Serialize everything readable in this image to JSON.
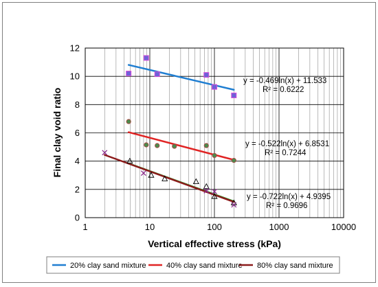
{
  "chart_data": {
    "type": "scatter",
    "xlabel": "Vertical effective stress (kPa)",
    "ylabel": "Final clay void ratio",
    "x_scale": "log",
    "xlim": [
      1,
      10000
    ],
    "ylim": [
      0,
      12
    ],
    "x_ticks": [
      "1",
      "10",
      "100",
      "1000",
      "10000"
    ],
    "y_ticks": [
      "0",
      "2",
      "4",
      "6",
      "8",
      "10",
      "12"
    ],
    "grid": true,
    "legend_position": "bottom",
    "series": [
      {
        "name": "20% clay sand mixture",
        "marker": "square",
        "marker_color": "#6f61d8",
        "line_color": "#1f7ed1",
        "points": [
          [
            4.7,
            10.2
          ],
          [
            8.8,
            11.3
          ],
          [
            13,
            10.15
          ],
          [
            75,
            10.1
          ],
          [
            100,
            9.25
          ],
          [
            200,
            8.65
          ]
        ],
        "trend": {
          "intercept": 11.533,
          "slope": -0.469,
          "x_range": [
            4.7,
            200
          ]
        },
        "equation": "y = -0.469ln(x) + 11.533",
        "r2": "R² = 0.6222"
      },
      {
        "name": "40% clay sand mixture",
        "marker": "circle",
        "marker_color": "#4d8a4d",
        "line_color": "#e02424",
        "points": [
          [
            4.7,
            6.8
          ],
          [
            8.8,
            5.15
          ],
          [
            13,
            5.1
          ],
          [
            24,
            5.05
          ],
          [
            75,
            5.1
          ],
          [
            100,
            4.4
          ],
          [
            200,
            4.05
          ]
        ],
        "trend": {
          "intercept": 6.8531,
          "slope": -0.522,
          "x_range": [
            4.7,
            200
          ]
        },
        "equation": "y = -0.522ln(x) + 6.8531",
        "r2": "R² = 0.7244"
      },
      {
        "name": "80% clay sand mixture",
        "marker": "x",
        "marker_color": "#8b2a8b",
        "line_color": "#8b1a1a",
        "points": [
          [
            2,
            4.6
          ],
          [
            8,
            3.15
          ],
          [
            75,
            1.9
          ],
          [
            100,
            1.85
          ],
          [
            200,
            0.9
          ]
        ],
        "trend": {
          "intercept": 4.9395,
          "slope": -0.722,
          "x_range": [
            2,
            200
          ]
        },
        "equation": "y = -0.722ln(x) + 4.9395",
        "r2": "R² = 0.9696"
      }
    ],
    "extra_series": [
      {
        "marker": "triangle",
        "line_color": "#2a9d2a",
        "points": [
          [
            4.9,
            4.0
          ],
          [
            10.5,
            3.0
          ],
          [
            17,
            2.75
          ],
          [
            52,
            2.55
          ],
          [
            75,
            2.2
          ],
          [
            100,
            1.5
          ],
          [
            200,
            1.05
          ]
        ],
        "trend": {
          "intercept": 4.94,
          "slope": -0.715,
          "x_range": [
            4.7,
            200
          ]
        }
      }
    ]
  }
}
